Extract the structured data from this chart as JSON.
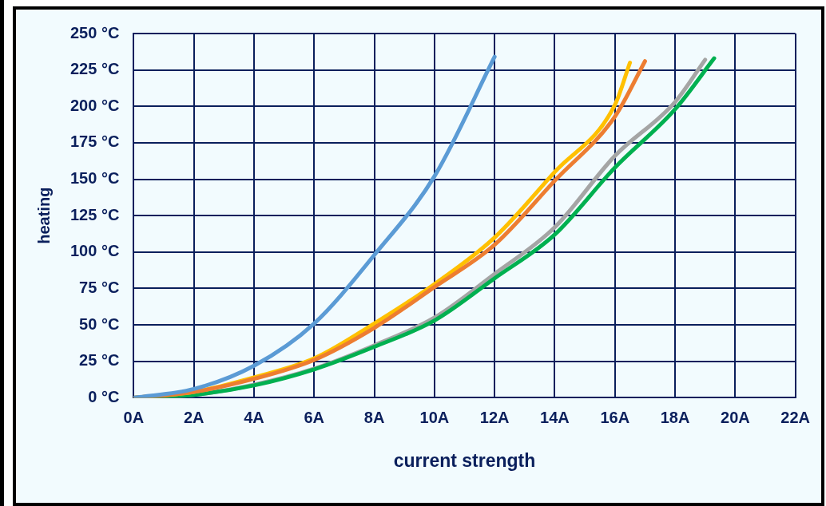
{
  "chart_data": {
    "type": "line",
    "xlabel": "current strength",
    "ylabel": "heating",
    "xlim": [
      0,
      22
    ],
    "ylim": [
      0,
      250
    ],
    "xticks": [
      {
        "value": 0,
        "label": "0A"
      },
      {
        "value": 2,
        "label": "2A"
      },
      {
        "value": 4,
        "label": "4A"
      },
      {
        "value": 6,
        "label": "6A"
      },
      {
        "value": 8,
        "label": "8A"
      },
      {
        "value": 10,
        "label": "10A"
      },
      {
        "value": 12,
        "label": "12A"
      },
      {
        "value": 14,
        "label": "14A"
      },
      {
        "value": 16,
        "label": "16A"
      },
      {
        "value": 18,
        "label": "18A"
      },
      {
        "value": 20,
        "label": "20A"
      },
      {
        "value": 22,
        "label": "22A"
      }
    ],
    "yticks": [
      {
        "value": 0,
        "label": "0 °C"
      },
      {
        "value": 25,
        "label": "25 °C"
      },
      {
        "value": 50,
        "label": "50 °C"
      },
      {
        "value": 75,
        "label": "75 °C"
      },
      {
        "value": 100,
        "label": "100 °C"
      },
      {
        "value": 125,
        "label": "125 °C"
      },
      {
        "value": 150,
        "label": "150 °C"
      },
      {
        "value": 175,
        "label": "175 °C"
      },
      {
        "value": 200,
        "label": "200 °C"
      },
      {
        "value": 225,
        "label": "225 °C"
      },
      {
        "value": 250,
        "label": "250 °C"
      }
    ],
    "grid": true,
    "legend": false,
    "marker": "none",
    "line_style": "solid",
    "series": [
      {
        "color": "#5b9bd5",
        "x": [
          0,
          2,
          4,
          6,
          8,
          10,
          12
        ],
        "values": [
          0,
          6,
          22,
          51,
          98,
          152,
          234
        ]
      },
      {
        "color": "#ed7d31",
        "x": [
          0,
          2,
          4,
          6,
          8,
          10,
          12,
          14,
          16,
          17
        ],
        "values": [
          0,
          4,
          13,
          26,
          48,
          76,
          105,
          149,
          193,
          231
        ]
      },
      {
        "color": "#ffc000",
        "x": [
          0,
          2,
          4,
          6,
          8,
          10,
          12,
          14,
          16,
          16.5
        ],
        "values": [
          0,
          4,
          14,
          27,
          51,
          78,
          110,
          155,
          201,
          230
        ]
      },
      {
        "color": "#00b050",
        "x": [
          0,
          2,
          4,
          6,
          8,
          10,
          12,
          14,
          16,
          18,
          19.3
        ],
        "values": [
          0,
          2,
          8.5,
          19.5,
          35,
          53,
          82,
          112,
          158,
          198,
          233
        ]
      },
      {
        "color": "#a5a5a5",
        "x": [
          0,
          2,
          4,
          6,
          8,
          10,
          12,
          14,
          16,
          18,
          19
        ],
        "values": [
          0,
          2,
          9,
          20,
          36,
          55,
          85,
          117,
          166,
          203,
          232
        ]
      }
    ]
  }
}
